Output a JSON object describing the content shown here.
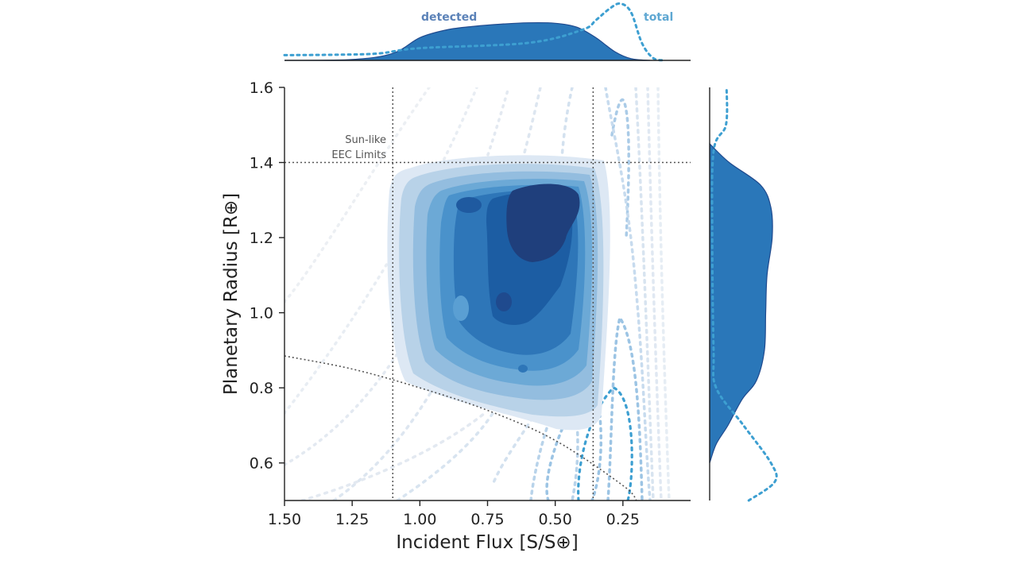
{
  "chart_data": {
    "type": "density-contour",
    "xlabel": "Incident Flux [S/S⊕]",
    "ylabel": "Planetary Radius [R⊕]",
    "x_inverted": true,
    "xlim": [
      1.5,
      0.0
    ],
    "ylim": [
      0.5,
      1.6
    ],
    "x_ticks": [
      1.5,
      1.25,
      1.0,
      0.75,
      0.5,
      0.25
    ],
    "x_tick_labels": [
      "1.50",
      "1.25",
      "1.00",
      "0.75",
      "0.50",
      "0.25"
    ],
    "y_ticks": [
      0.6,
      0.8,
      1.0,
      1.2,
      1.4,
      1.6
    ],
    "y_tick_labels": [
      "0.6",
      "0.8",
      "1.0",
      "1.2",
      "1.4",
      "1.6"
    ],
    "grid": false,
    "eec_limits": {
      "label_line1": "Sun-like",
      "label_line2": "EEC Limits",
      "x_min": 1.1,
      "x_max": 0.36,
      "y_max": 1.4
    },
    "lower_radius_limit_curve": [
      [
        1.5,
        0.885
      ],
      [
        1.25,
        0.85
      ],
      [
        1.0,
        0.8
      ],
      [
        0.75,
        0.74
      ],
      [
        0.5,
        0.66
      ],
      [
        0.25,
        0.54
      ],
      [
        0.2,
        0.5
      ]
    ],
    "series": [
      {
        "name": "detected",
        "style": "filled contours",
        "color": "#2a77b9"
      },
      {
        "name": "total",
        "style": "dotted contours",
        "color": "#3d9fd1"
      }
    ],
    "marginals": {
      "x_detected_density": [
        [
          1.5,
          0.0
        ],
        [
          1.25,
          0.02
        ],
        [
          1.1,
          0.16
        ],
        [
          1.0,
          0.52
        ],
        [
          0.9,
          0.7
        ],
        [
          0.8,
          0.78
        ],
        [
          0.7,
          0.83
        ],
        [
          0.6,
          0.86
        ],
        [
          0.5,
          0.85
        ],
        [
          0.42,
          0.76
        ],
        [
          0.35,
          0.52
        ],
        [
          0.28,
          0.2
        ],
        [
          0.22,
          0.04
        ],
        [
          0.15,
          0.0
        ]
      ],
      "x_total_density": [
        [
          1.5,
          0.12
        ],
        [
          1.3,
          0.13
        ],
        [
          1.15,
          0.16
        ],
        [
          1.0,
          0.28
        ],
        [
          0.6,
          0.4
        ],
        [
          0.4,
          0.7
        ],
        [
          0.35,
          0.92
        ],
        [
          0.3,
          1.18
        ],
        [
          0.26,
          1.3
        ],
        [
          0.22,
          1.1
        ],
        [
          0.18,
          0.4
        ],
        [
          0.14,
          0.06
        ],
        [
          0.1,
          0.0
        ]
      ],
      "y_detected_density": [
        [
          0.6,
          0.0
        ],
        [
          0.65,
          0.1
        ],
        [
          0.7,
          0.28
        ],
        [
          0.77,
          0.5
        ],
        [
          0.82,
          0.72
        ],
        [
          0.9,
          0.84
        ],
        [
          1.0,
          0.86
        ],
        [
          1.1,
          0.88
        ],
        [
          1.2,
          0.96
        ],
        [
          1.28,
          0.94
        ],
        [
          1.34,
          0.78
        ],
        [
          1.4,
          0.3
        ],
        [
          1.45,
          0.0
        ]
      ],
      "y_total_density": [
        [
          0.5,
          0.6
        ],
        [
          0.55,
          1.0
        ],
        [
          0.6,
          0.94
        ],
        [
          0.7,
          0.52
        ],
        [
          0.8,
          0.1
        ],
        [
          0.9,
          0.06
        ],
        [
          1.2,
          0.04
        ],
        [
          1.43,
          0.06
        ],
        [
          1.5,
          0.25
        ],
        [
          1.6,
          0.26
        ]
      ]
    }
  }
}
